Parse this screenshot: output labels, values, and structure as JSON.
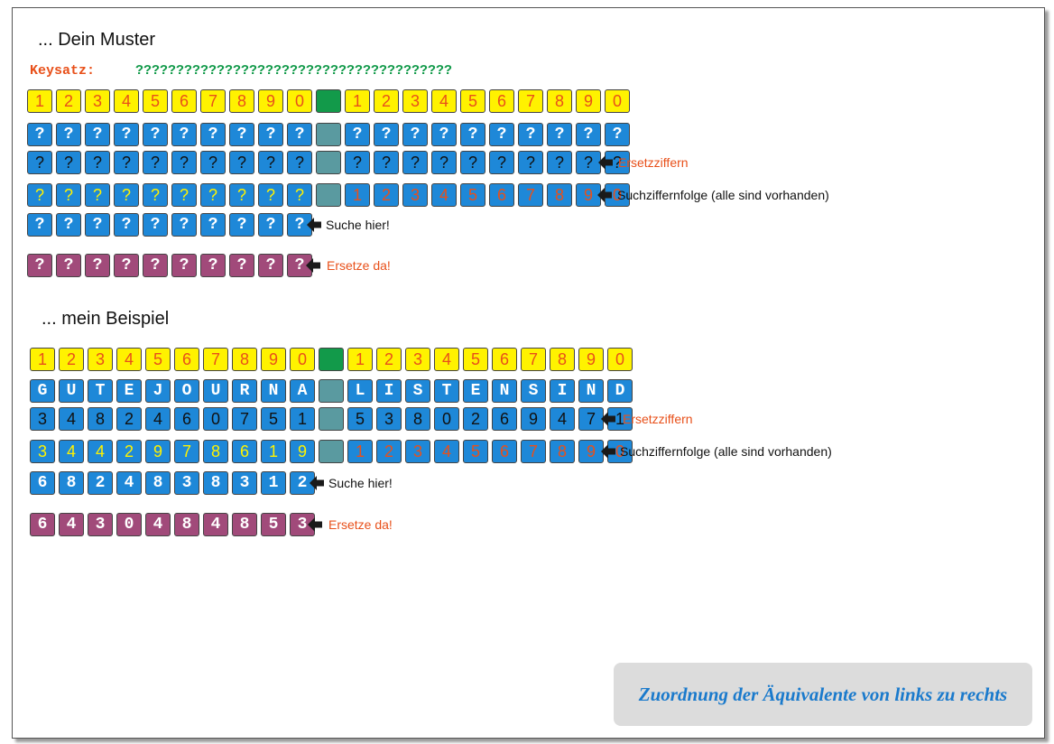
{
  "muster": {
    "heading": "... Dein Muster",
    "keysatz_label": "Keysatz:",
    "keysatz_value": "???????????????????????????????????????",
    "rows": [
      {
        "id": "header",
        "left": [
          {
            "t": "1",
            "s": "yellow"
          },
          {
            "t": "2",
            "s": "yellow"
          },
          {
            "t": "3",
            "s": "yellow"
          },
          {
            "t": "4",
            "s": "yellow"
          },
          {
            "t": "5",
            "s": "yellow"
          },
          {
            "t": "6",
            "s": "yellow"
          },
          {
            "t": "7",
            "s": "yellow"
          },
          {
            "t": "8",
            "s": "yellow"
          },
          {
            "t": "9",
            "s": "yellow"
          },
          {
            "t": "0",
            "s": "yellow"
          }
        ],
        "sep": "green",
        "right": [
          {
            "t": "1",
            "s": "yellow"
          },
          {
            "t": "2",
            "s": "yellow"
          },
          {
            "t": "3",
            "s": "yellow"
          },
          {
            "t": "4",
            "s": "yellow"
          },
          {
            "t": "5",
            "s": "yellow"
          },
          {
            "t": "6",
            "s": "yellow"
          },
          {
            "t": "7",
            "s": "yellow"
          },
          {
            "t": "8",
            "s": "yellow"
          },
          {
            "t": "9",
            "s": "yellow"
          },
          {
            "t": "0",
            "s": "yellow"
          }
        ]
      },
      {
        "id": "key",
        "left": [
          {
            "t": "?",
            "s": "blue-white"
          },
          {
            "t": "?",
            "s": "blue-white"
          },
          {
            "t": "?",
            "s": "blue-white"
          },
          {
            "t": "?",
            "s": "blue-white"
          },
          {
            "t": "?",
            "s": "blue-white"
          },
          {
            "t": "?",
            "s": "blue-white"
          },
          {
            "t": "?",
            "s": "blue-white"
          },
          {
            "t": "?",
            "s": "blue-white"
          },
          {
            "t": "?",
            "s": "blue-white"
          },
          {
            "t": "?",
            "s": "blue-white"
          }
        ],
        "sep": "teal",
        "right": [
          {
            "t": "?",
            "s": "blue-white"
          },
          {
            "t": "?",
            "s": "blue-white"
          },
          {
            "t": "?",
            "s": "blue-white"
          },
          {
            "t": "?",
            "s": "blue-white"
          },
          {
            "t": "?",
            "s": "blue-white"
          },
          {
            "t": "?",
            "s": "blue-white"
          },
          {
            "t": "?",
            "s": "blue-white"
          },
          {
            "t": "?",
            "s": "blue-white"
          },
          {
            "t": "?",
            "s": "blue-white"
          },
          {
            "t": "?",
            "s": "blue-white"
          }
        ]
      },
      {
        "id": "ersetz",
        "left": [
          {
            "t": "?",
            "s": "blue-black"
          },
          {
            "t": "?",
            "s": "blue-black"
          },
          {
            "t": "?",
            "s": "blue-black"
          },
          {
            "t": "?",
            "s": "blue-black"
          },
          {
            "t": "?",
            "s": "blue-black"
          },
          {
            "t": "?",
            "s": "blue-black"
          },
          {
            "t": "?",
            "s": "blue-black"
          },
          {
            "t": "?",
            "s": "blue-black"
          },
          {
            "t": "?",
            "s": "blue-black"
          },
          {
            "t": "?",
            "s": "blue-black"
          }
        ],
        "sep": "teal",
        "right": [
          {
            "t": "?",
            "s": "blue-black"
          },
          {
            "t": "?",
            "s": "blue-black"
          },
          {
            "t": "?",
            "s": "blue-black"
          },
          {
            "t": "?",
            "s": "blue-black"
          },
          {
            "t": "?",
            "s": "blue-black"
          },
          {
            "t": "?",
            "s": "blue-black"
          },
          {
            "t": "?",
            "s": "blue-black"
          },
          {
            "t": "?",
            "s": "blue-black"
          },
          {
            "t": "?",
            "s": "blue-black"
          },
          {
            "t": "?",
            "s": "blue-black"
          }
        ],
        "note": "Ersetzziffern",
        "note_style": "red"
      },
      {
        "id": "such",
        "left": [
          {
            "t": "?",
            "s": "blue-yellow"
          },
          {
            "t": "?",
            "s": "blue-yellow"
          },
          {
            "t": "?",
            "s": "blue-yellow"
          },
          {
            "t": "?",
            "s": "blue-yellow"
          },
          {
            "t": "?",
            "s": "blue-yellow"
          },
          {
            "t": "?",
            "s": "blue-yellow"
          },
          {
            "t": "?",
            "s": "blue-yellow"
          },
          {
            "t": "?",
            "s": "blue-yellow"
          },
          {
            "t": "?",
            "s": "blue-yellow"
          },
          {
            "t": "?",
            "s": "blue-yellow"
          }
        ],
        "sep": "teal",
        "right": [
          {
            "t": "1",
            "s": "blue-red"
          },
          {
            "t": "2",
            "s": "blue-red"
          },
          {
            "t": "3",
            "s": "blue-red"
          },
          {
            "t": "4",
            "s": "blue-red"
          },
          {
            "t": "5",
            "s": "blue-red"
          },
          {
            "t": "6",
            "s": "blue-red"
          },
          {
            "t": "7",
            "s": "blue-red"
          },
          {
            "t": "8",
            "s": "blue-red"
          },
          {
            "t": "9",
            "s": "blue-red"
          },
          {
            "t": "0",
            "s": "blue-red"
          }
        ],
        "note": "Suchziffernfolge (alle sind vorhanden)",
        "note_style": "black"
      },
      {
        "id": "suche",
        "left": [
          {
            "t": "?",
            "s": "blue-white"
          },
          {
            "t": "?",
            "s": "blue-white"
          },
          {
            "t": "?",
            "s": "blue-white"
          },
          {
            "t": "?",
            "s": "blue-white"
          },
          {
            "t": "?",
            "s": "blue-white"
          },
          {
            "t": "?",
            "s": "blue-white"
          },
          {
            "t": "?",
            "s": "blue-white"
          },
          {
            "t": "?",
            "s": "blue-white"
          },
          {
            "t": "?",
            "s": "blue-white"
          },
          {
            "t": "?",
            "s": "blue-white"
          }
        ],
        "note": "Suche hier!",
        "note_style": "black"
      },
      {
        "id": "ersetze",
        "left": [
          {
            "t": "?",
            "s": "purple"
          },
          {
            "t": "?",
            "s": "purple"
          },
          {
            "t": "?",
            "s": "purple"
          },
          {
            "t": "?",
            "s": "purple"
          },
          {
            "t": "?",
            "s": "purple"
          },
          {
            "t": "?",
            "s": "purple"
          },
          {
            "t": "?",
            "s": "purple"
          },
          {
            "t": "?",
            "s": "purple"
          },
          {
            "t": "?",
            "s": "purple"
          },
          {
            "t": "?",
            "s": "purple"
          }
        ],
        "note": "Ersetze da!",
        "note_style": "red"
      }
    ]
  },
  "beispiel": {
    "heading": "... mein Beispiel",
    "rows": [
      {
        "id": "header",
        "left": [
          {
            "t": "1",
            "s": "yellow"
          },
          {
            "t": "2",
            "s": "yellow"
          },
          {
            "t": "3",
            "s": "yellow"
          },
          {
            "t": "4",
            "s": "yellow"
          },
          {
            "t": "5",
            "s": "yellow"
          },
          {
            "t": "6",
            "s": "yellow"
          },
          {
            "t": "7",
            "s": "yellow"
          },
          {
            "t": "8",
            "s": "yellow"
          },
          {
            "t": "9",
            "s": "yellow"
          },
          {
            "t": "0",
            "s": "yellow"
          }
        ],
        "sep": "green",
        "right": [
          {
            "t": "1",
            "s": "yellow"
          },
          {
            "t": "2",
            "s": "yellow"
          },
          {
            "t": "3",
            "s": "yellow"
          },
          {
            "t": "4",
            "s": "yellow"
          },
          {
            "t": "5",
            "s": "yellow"
          },
          {
            "t": "6",
            "s": "yellow"
          },
          {
            "t": "7",
            "s": "yellow"
          },
          {
            "t": "8",
            "s": "yellow"
          },
          {
            "t": "9",
            "s": "yellow"
          },
          {
            "t": "0",
            "s": "yellow"
          }
        ]
      },
      {
        "id": "key",
        "left": [
          {
            "t": "G",
            "s": "blue-white"
          },
          {
            "t": "U",
            "s": "blue-white"
          },
          {
            "t": "T",
            "s": "blue-white"
          },
          {
            "t": "E",
            "s": "blue-white"
          },
          {
            "t": "J",
            "s": "blue-white"
          },
          {
            "t": "O",
            "s": "blue-white"
          },
          {
            "t": "U",
            "s": "blue-white"
          },
          {
            "t": "R",
            "s": "blue-white"
          },
          {
            "t": "N",
            "s": "blue-white"
          },
          {
            "t": "A",
            "s": "blue-white"
          }
        ],
        "sep": "teal",
        "right": [
          {
            "t": "L",
            "s": "blue-white"
          },
          {
            "t": "I",
            "s": "blue-white"
          },
          {
            "t": "S",
            "s": "blue-white"
          },
          {
            "t": "T",
            "s": "blue-white"
          },
          {
            "t": "E",
            "s": "blue-white"
          },
          {
            "t": "N",
            "s": "blue-white"
          },
          {
            "t": "S",
            "s": "blue-white"
          },
          {
            "t": "I",
            "s": "blue-white"
          },
          {
            "t": "N",
            "s": "blue-white"
          },
          {
            "t": "D",
            "s": "blue-white"
          }
        ]
      },
      {
        "id": "ersetz",
        "left": [
          {
            "t": "3",
            "s": "blue-black"
          },
          {
            "t": "4",
            "s": "blue-black"
          },
          {
            "t": "8",
            "s": "blue-black"
          },
          {
            "t": "2",
            "s": "blue-black"
          },
          {
            "t": "4",
            "s": "blue-black"
          },
          {
            "t": "6",
            "s": "blue-black"
          },
          {
            "t": "0",
            "s": "blue-black"
          },
          {
            "t": "7",
            "s": "blue-black"
          },
          {
            "t": "5",
            "s": "blue-black"
          },
          {
            "t": "1",
            "s": "blue-black"
          }
        ],
        "sep": "teal",
        "right": [
          {
            "t": "5",
            "s": "blue-black"
          },
          {
            "t": "3",
            "s": "blue-black"
          },
          {
            "t": "8",
            "s": "blue-black"
          },
          {
            "t": "0",
            "s": "blue-black"
          },
          {
            "t": "2",
            "s": "blue-black"
          },
          {
            "t": "6",
            "s": "blue-black"
          },
          {
            "t": "9",
            "s": "blue-black"
          },
          {
            "t": "4",
            "s": "blue-black"
          },
          {
            "t": "7",
            "s": "blue-black"
          },
          {
            "t": "1",
            "s": "blue-black"
          }
        ],
        "note": "Ersetzziffern",
        "note_style": "red"
      },
      {
        "id": "such",
        "left": [
          {
            "t": "3",
            "s": "blue-yellow"
          },
          {
            "t": "4",
            "s": "blue-yellow"
          },
          {
            "t": "4",
            "s": "blue-yellow"
          },
          {
            "t": "2",
            "s": "blue-yellow"
          },
          {
            "t": "9",
            "s": "blue-yellow"
          },
          {
            "t": "7",
            "s": "blue-yellow"
          },
          {
            "t": "8",
            "s": "blue-yellow"
          },
          {
            "t": "6",
            "s": "blue-yellow"
          },
          {
            "t": "1",
            "s": "blue-yellow"
          },
          {
            "t": "9",
            "s": "blue-yellow"
          }
        ],
        "sep": "teal",
        "right": [
          {
            "t": "1",
            "s": "blue-red"
          },
          {
            "t": "2",
            "s": "blue-red"
          },
          {
            "t": "3",
            "s": "blue-red"
          },
          {
            "t": "4",
            "s": "blue-red"
          },
          {
            "t": "5",
            "s": "blue-red"
          },
          {
            "t": "6",
            "s": "blue-red"
          },
          {
            "t": "7",
            "s": "blue-red"
          },
          {
            "t": "8",
            "s": "blue-red"
          },
          {
            "t": "9",
            "s": "blue-red"
          },
          {
            "t": "0",
            "s": "blue-red"
          }
        ],
        "note": "Suchziffernfolge (alle sind vorhanden)",
        "note_style": "black"
      },
      {
        "id": "suche",
        "left": [
          {
            "t": "6",
            "s": "blue-white"
          },
          {
            "t": "8",
            "s": "blue-white"
          },
          {
            "t": "2",
            "s": "blue-white"
          },
          {
            "t": "4",
            "s": "blue-white"
          },
          {
            "t": "8",
            "s": "blue-white"
          },
          {
            "t": "3",
            "s": "blue-white"
          },
          {
            "t": "8",
            "s": "blue-white"
          },
          {
            "t": "3",
            "s": "blue-white"
          },
          {
            "t": "1",
            "s": "blue-white"
          },
          {
            "t": "2",
            "s": "blue-white"
          }
        ],
        "note": "Suche hier!",
        "note_style": "black"
      },
      {
        "id": "ersetze",
        "left": [
          {
            "t": "6",
            "s": "purple"
          },
          {
            "t": "4",
            "s": "purple"
          },
          {
            "t": "3",
            "s": "purple"
          },
          {
            "t": "0",
            "s": "purple"
          },
          {
            "t": "4",
            "s": "purple"
          },
          {
            "t": "8",
            "s": "purple"
          },
          {
            "t": "4",
            "s": "purple"
          },
          {
            "t": "8",
            "s": "purple"
          },
          {
            "t": "5",
            "s": "purple"
          },
          {
            "t": "3",
            "s": "purple"
          }
        ],
        "note": "Ersetze da!",
        "note_style": "red"
      }
    ]
  },
  "footer": {
    "text": "Zuordnung der Äquivalente von links zu rechts"
  },
  "colors": {
    "yellow": "#fff200",
    "green": "#129a4a",
    "blue": "#1e88d8",
    "teal": "#5a9aa0",
    "purple": "#a14a7a",
    "red": "#e8501a"
  }
}
